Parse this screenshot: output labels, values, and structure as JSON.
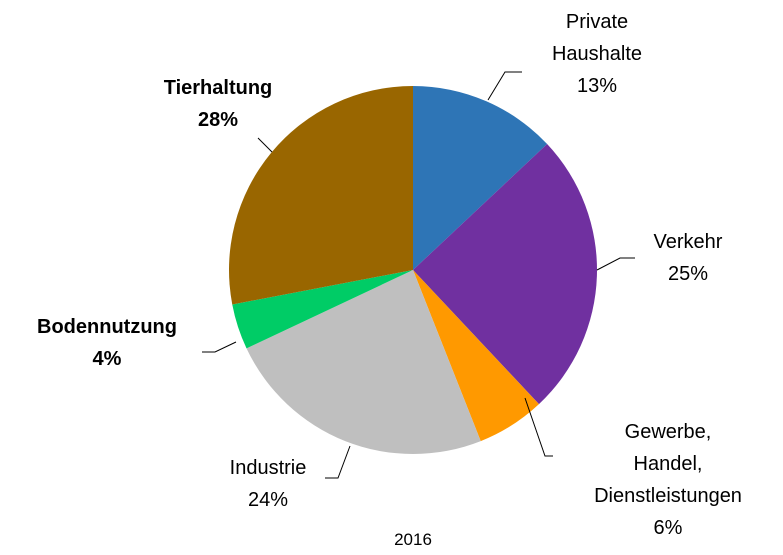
{
  "chart_data": {
    "type": "pie",
    "title": "2016",
    "categories": [
      "Private\nHaushalte",
      "Verkehr",
      "Gewerbe, Handel,\nDienstleistungen",
      "Industrie",
      "Bodennutzung",
      "Tierhaltung"
    ],
    "values": [
      13,
      25,
      6,
      24,
      4,
      28
    ],
    "value_labels": [
      "13%",
      "25%",
      "6%",
      "24%",
      "4%",
      "28%"
    ],
    "colors": [
      "#2e75b6",
      "#7030a0",
      "#ff9900",
      "#bfbfbf",
      "#00cc66",
      "#996600"
    ],
    "bold": [
      false,
      false,
      false,
      false,
      true,
      true
    ]
  }
}
